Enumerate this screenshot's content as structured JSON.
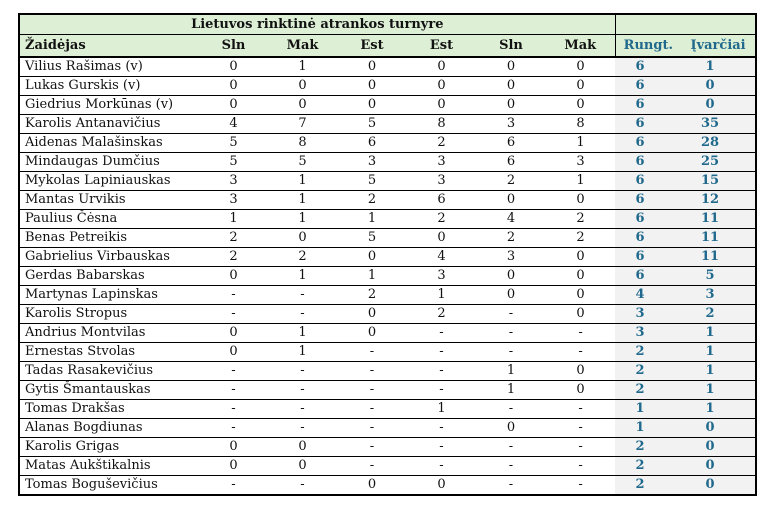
{
  "table": {
    "title": "Lietuvos rinktinė atrankos turnyre",
    "columns": [
      "Žaidėjas",
      "Sln",
      "Mak",
      "Est",
      "Est",
      "Sln",
      "Mak",
      "Rungt.",
      "Įvarčiai"
    ],
    "rows": [
      [
        "Vilius Rašimas (v)",
        "0",
        "1",
        "0",
        "0",
        "0",
        "0",
        "6",
        "1"
      ],
      [
        "Lukas Gurskis (v)",
        "0",
        "0",
        "0",
        "0",
        "0",
        "0",
        "6",
        "0"
      ],
      [
        "Giedrius Morkūnas (v)",
        "0",
        "0",
        "0",
        "0",
        "0",
        "0",
        "6",
        "0"
      ],
      [
        "Karolis Antanavičius",
        "4",
        "7",
        "5",
        "8",
        "3",
        "8",
        "6",
        "35"
      ],
      [
        "Aidenas Malašinskas",
        "5",
        "8",
        "6",
        "2",
        "6",
        "1",
        "6",
        "28"
      ],
      [
        "Mindaugas Dumčius",
        "5",
        "5",
        "3",
        "3",
        "6",
        "3",
        "6",
        "25"
      ],
      [
        "Mykolas Lapiniauskas",
        "3",
        "1",
        "5",
        "3",
        "2",
        "1",
        "6",
        "15"
      ],
      [
        "Mantas Urvikis",
        "3",
        "1",
        "2",
        "6",
        "0",
        "0",
        "6",
        "12"
      ],
      [
        "Paulius Čėsna",
        "1",
        "1",
        "1",
        "2",
        "4",
        "2",
        "6",
        "11"
      ],
      [
        "Benas Petreikis",
        "2",
        "0",
        "5",
        "0",
        "2",
        "2",
        "6",
        "11"
      ],
      [
        "Gabrielius Virbauskas",
        "2",
        "2",
        "0",
        "4",
        "3",
        "0",
        "6",
        "11"
      ],
      [
        "Gerdas Babarskas",
        "0",
        "1",
        "1",
        "3",
        "0",
        "0",
        "6",
        "5"
      ],
      [
        "Martynas Lapinskas",
        "-",
        "-",
        "2",
        "1",
        "0",
        "0",
        "4",
        "3"
      ],
      [
        "Karolis Stropus",
        "-",
        "-",
        "0",
        "2",
        "-",
        "0",
        "3",
        "2"
      ],
      [
        "Andrius Montvilas",
        "0",
        "1",
        "0",
        "-",
        "-",
        "-",
        "3",
        "1"
      ],
      [
        "Ernestas Stvolas",
        "0",
        "1",
        "-",
        "-",
        "-",
        "-",
        "2",
        "1"
      ],
      [
        "Tadas Rasakevičius",
        "-",
        "-",
        "-",
        "-",
        "1",
        "0",
        "2",
        "1"
      ],
      [
        "Gytis Šmantauskas",
        "-",
        "-",
        "-",
        "-",
        "1",
        "0",
        "2",
        "1"
      ],
      [
        "Tomas Drakšas",
        "-",
        "-",
        "-",
        "1",
        "-",
        "-",
        "1",
        "1"
      ],
      [
        "Alanas Bogdiunas",
        "-",
        "-",
        "-",
        "-",
        "0",
        "-",
        "1",
        "0"
      ],
      [
        "Karolis Grigas",
        "0",
        "0",
        "-",
        "-",
        "-",
        "-",
        "2",
        "0"
      ],
      [
        "Matas Aukštikalnis",
        "0",
        "0",
        "-",
        "-",
        "-",
        "-",
        "2",
        "0"
      ],
      [
        "Tomas Boguševičius",
        "-",
        "-",
        "0",
        "0",
        "-",
        "-",
        "2",
        "0"
      ]
    ]
  },
  "colors": {
    "header_bg": "#ddefd5",
    "accent_teal": "#20698c",
    "summary_bg": "#f2f2f2",
    "border": "#000000"
  }
}
